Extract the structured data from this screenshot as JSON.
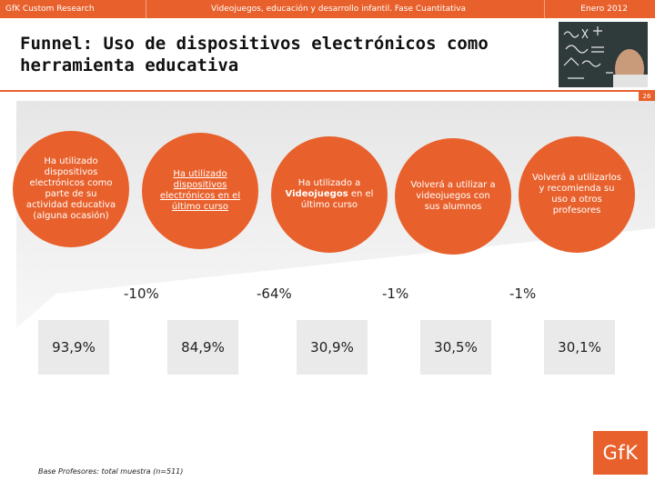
{
  "header": {
    "company": "GfK Custom Research",
    "study": "Videojuegos, educación y desarrollo infantil. Fase Cuantitativa",
    "date": "Enero 2012"
  },
  "title": {
    "line1": "Funnel: Uso de dispositivos electrónicos como",
    "line2": "herramienta educativa"
  },
  "page_number": "26",
  "stages": [
    {
      "text": "Ha utilizado dispositivos electrónicos como parte de su actividad educativa (alguna ocasión)",
      "value": "93,9%"
    },
    {
      "text": "Ha utilizado dispositivos electrónicos en el último curso",
      "value": "84,9%"
    },
    {
      "text_a": "Ha utilizado a ",
      "text_bold": "Videojuegos",
      "text_b": " en el último curso",
      "value": "30,9%"
    },
    {
      "text": "Volverá a utilizar a videojuegos con sus alumnos",
      "value": "30,5%"
    },
    {
      "text": "Volverá a utilizarlos y recomienda su uso a otros profesores",
      "value": "30,1%"
    }
  ],
  "drops": [
    "-10%",
    "-64%",
    "-1%",
    "-1%"
  ],
  "base_note": "Base Profesores: total muestra (n=511)",
  "logo_text": "GfK",
  "colors": {
    "brand": "#e8612c",
    "value_box": "#eaeaea"
  }
}
